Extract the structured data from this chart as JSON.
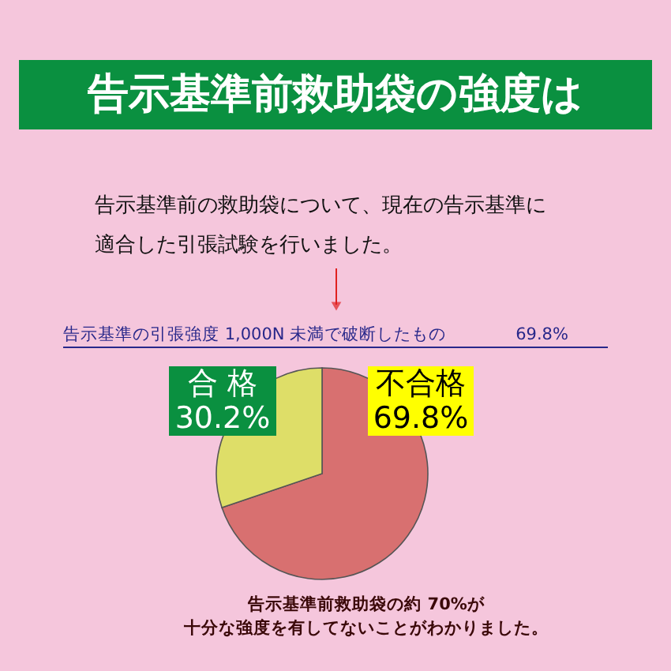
{
  "chart_data": {
    "type": "pie",
    "title": "告示基準前救助袋の強度は",
    "categories": [
      "不合格",
      "合 格"
    ],
    "values": [
      69.8,
      30.2
    ],
    "colors": [
      "#d87070",
      "#dede68"
    ],
    "value_labels": [
      "69.8%",
      "30.2%"
    ],
    "annotations": [
      "告示基準前の救助袋について、現在の告示基準に",
      "適合した引張試験を行いました。",
      "告示基準の引張強度 1,000N 未満で破断したもの　　　　69.8%",
      "告示基準前救助袋の約 70%が",
      "十分な強度を有してないことがわかりました。"
    ]
  }
}
